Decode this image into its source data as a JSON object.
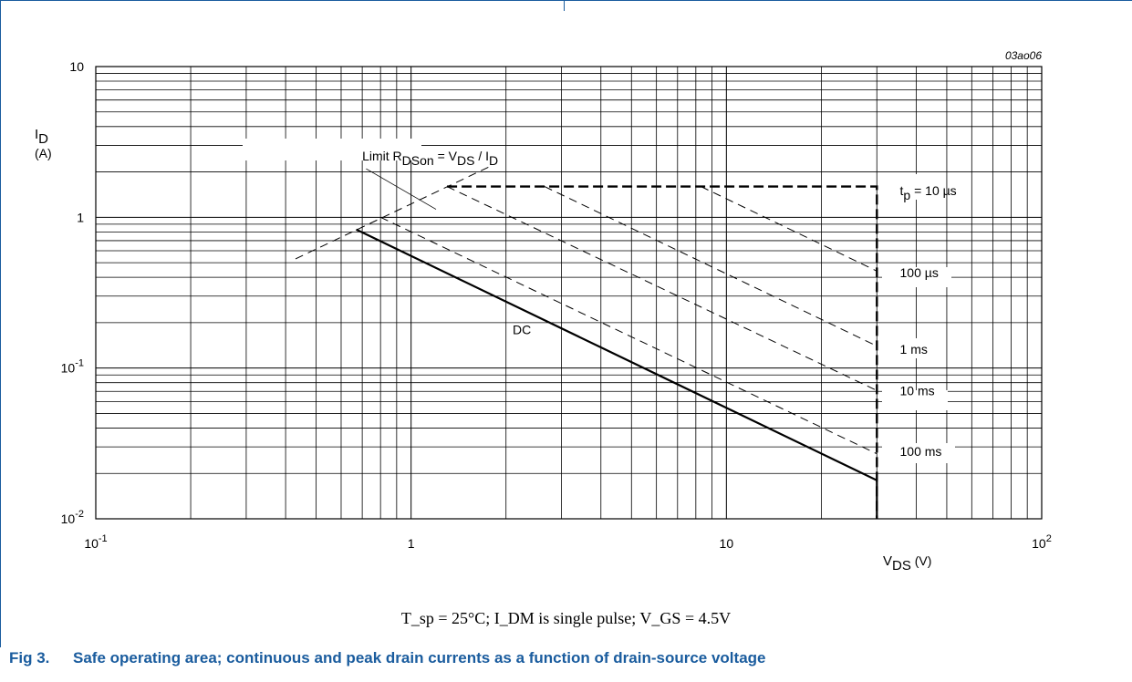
{
  "chart_data": {
    "type": "line",
    "id_code": "03ao06",
    "x_scale": "log",
    "y_scale": "log",
    "xlim": [
      0.1,
      100
    ],
    "ylim": [
      0.01,
      10
    ],
    "grid": true,
    "x_ticks": [
      {
        "value": 0.1,
        "base": "10",
        "exp": "-1"
      },
      {
        "value": 1,
        "base": "1",
        "exp": ""
      },
      {
        "value": 10,
        "base": "10",
        "exp": ""
      },
      {
        "value": 100,
        "base": "10",
        "exp": "2"
      }
    ],
    "y_ticks": [
      {
        "value": 10,
        "base": "10",
        "exp": ""
      },
      {
        "value": 1,
        "base": "1",
        "exp": ""
      },
      {
        "value": 0.1,
        "base": "10",
        "exp": "-1"
      },
      {
        "value": 0.01,
        "base": "10",
        "exp": "-2"
      }
    ],
    "ylabel": {
      "sym": "I",
      "sub": "D",
      "unit": "(A)"
    },
    "xlabel": {
      "sym": "V",
      "sub": "DS",
      "unit": "(V)"
    },
    "series": [
      {
        "name": "DC",
        "style": "solid",
        "width": 2.2,
        "x": [
          0.67,
          30,
          30
        ],
        "y": [
          0.83,
          0.018,
          0.01
        ]
      },
      {
        "name": "100 ms",
        "style": "dashed",
        "width": 1,
        "x": [
          0.8,
          30
        ],
        "y": [
          1.0,
          0.027
        ]
      },
      {
        "name": "10 ms",
        "style": "dashed",
        "width": 1,
        "x": [
          1.3,
          30
        ],
        "y": [
          1.6,
          0.071
        ]
      },
      {
        "name": "1 ms",
        "style": "dashed",
        "width": 1,
        "x": [
          2.65,
          30
        ],
        "y": [
          1.6,
          0.14
        ]
      },
      {
        "name": "100 µs",
        "style": "dashed",
        "width": 1,
        "x": [
          8.3,
          30
        ],
        "y": [
          1.6,
          0.44
        ]
      },
      {
        "name": "tp = 10 µs",
        "style": "bold-dashed",
        "width": 2.4,
        "x": [
          1.3,
          30,
          30
        ],
        "y": [
          1.6,
          1.6,
          0.01
        ]
      },
      {
        "name": "Limit RDSon = VDS / ID",
        "style": "dashed",
        "width": 1,
        "x": [
          0.43,
          1.8
        ],
        "y": [
          0.53,
          2.2
        ]
      }
    ],
    "curve_labels": [
      {
        "parts": [
          [
            "",
            "t"
          ],
          [
            "sub",
            "p"
          ],
          [
            "",
            " = 10 µs"
          ]
        ],
        "x": 35.5,
        "y": 1.5
      },
      {
        "parts": [
          [
            "",
            "100 µs"
          ]
        ],
        "x": 35.5,
        "y": 0.43
      },
      {
        "parts": [
          [
            "",
            "1 ms"
          ]
        ],
        "x": 35.5,
        "y": 0.133
      },
      {
        "parts": [
          [
            "",
            "10 ms"
          ]
        ],
        "x": 35.5,
        "y": 0.071
      },
      {
        "parts": [
          [
            "",
            "100 ms"
          ]
        ],
        "x": 35.5,
        "y": 0.028
      },
      {
        "parts": [
          [
            "",
            "DC"
          ]
        ],
        "x": 2.1,
        "y": 0.18
      }
    ],
    "annotation": {
      "parts": [
        [
          "",
          "Limit R"
        ],
        [
          "sub",
          "DSon"
        ],
        [
          "",
          " = V"
        ],
        [
          "sub",
          "DS"
        ],
        [
          "",
          " / I"
        ],
        [
          "sub",
          "D"
        ]
      ],
      "x": 0.7,
      "y": 2.55,
      "leader": [
        [
          0.72,
          2.1
        ],
        [
          1.2,
          1.13
        ]
      ]
    }
  },
  "conditions": "T_sp = 25°C; I_DM is single pulse; V_GS = 4.5V",
  "caption": {
    "number": "Fig 3.",
    "text": "Safe operating area; continuous and peak drain currents as a function of drain-source voltage"
  }
}
